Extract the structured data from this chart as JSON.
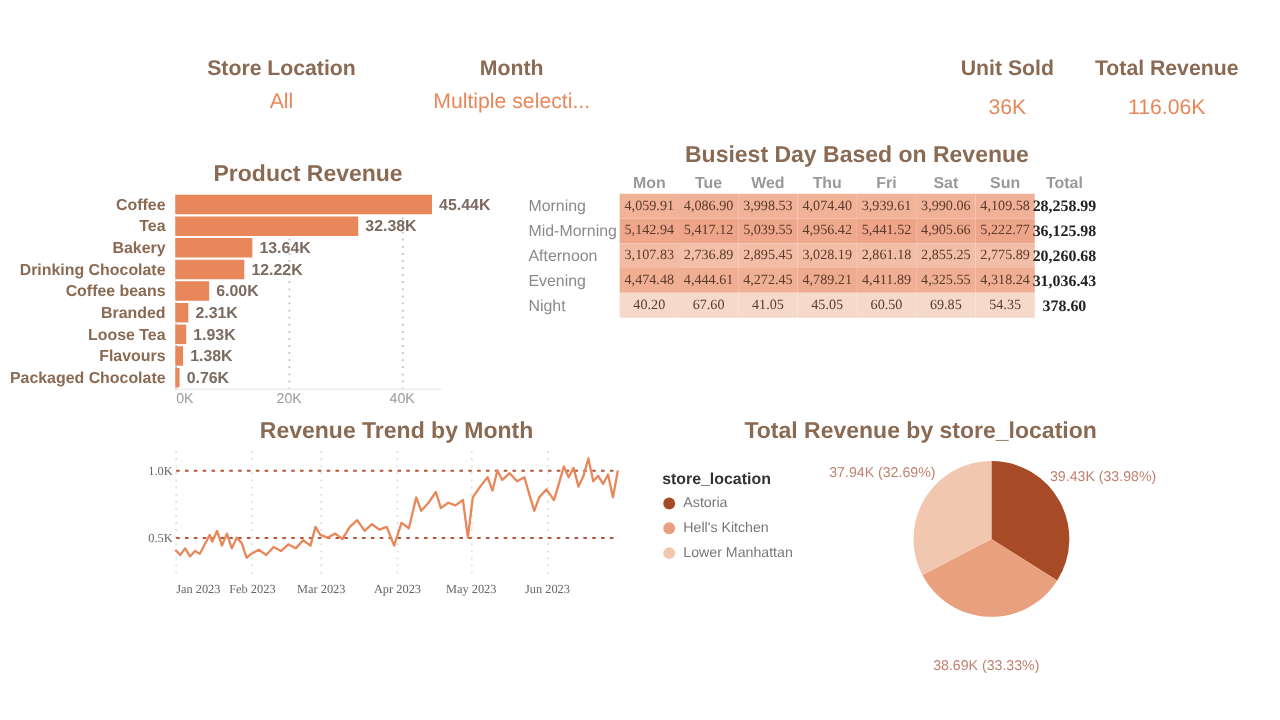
{
  "chart_data": [
    {
      "type": "other",
      "annotations": [
        "Store Location",
        "All",
        "Month",
        "Multiple selecti...",
        "Unit Sold",
        "36K",
        "Total Revenue",
        "116.06K"
      ]
    },
    {
      "type": "bar",
      "title": "Product Revenue",
      "orientation": "horizontal",
      "categories": [
        "Coffee",
        "Tea",
        "Bakery",
        "Drinking Chocolate",
        "Coffee beans",
        "Branded",
        "Loose Tea",
        "Flavours",
        "Packaged Chocolate"
      ],
      "values": [
        45.44,
        32.38,
        13.64,
        12.22,
        6.0,
        2.31,
        1.93,
        1.38,
        0.76
      ],
      "value_labels": [
        "45.44K",
        "32.38K",
        "13.64K",
        "12.22K",
        "6.00K",
        "2.31K",
        "1.93K",
        "1.38K",
        "0.76K"
      ],
      "color": "#e8875a",
      "xlim": [
        0,
        47
      ],
      "xticks": [
        {
          "value": 0,
          "label": "0K"
        },
        {
          "value": 20,
          "label": "20K"
        },
        {
          "value": 40,
          "label": "40K"
        }
      ],
      "grid": "x"
    },
    {
      "type": "heatmap",
      "title": "Busiest Day Based on Revenue",
      "categories": [
        "Mon",
        "Tue",
        "Wed",
        "Thu",
        "Fri",
        "Sat",
        "Sun"
      ],
      "y_categories": [
        "Morning",
        "Mid-Morning",
        "Afternoon",
        "Evening",
        "Night"
      ],
      "cells": [
        [
          4059.91,
          4086.9,
          3998.53,
          4074.4,
          3939.61,
          3990.06,
          4109.58
        ],
        [
          5142.94,
          5417.12,
          5039.55,
          4956.42,
          5441.52,
          4905.66,
          5222.77
        ],
        [
          3107.83,
          2736.89,
          2895.45,
          3028.19,
          2861.18,
          2855.25,
          2775.89
        ],
        [
          4474.48,
          4444.61,
          4272.45,
          4789.21,
          4411.89,
          4325.55,
          4318.24
        ],
        [
          40.2,
          67.6,
          41.05,
          45.05,
          60.5,
          69.85,
          54.35
        ]
      ],
      "cell_labels": [
        [
          "4,059.91",
          "4,086.90",
          "3,998.53",
          "4,074.40",
          "3,939.61",
          "3,990.06",
          "4,109.58"
        ],
        [
          "5,142.94",
          "5,417.12",
          "5,039.55",
          "4,956.42",
          "5,441.52",
          "4,905.66",
          "5,222.77"
        ],
        [
          "3,107.83",
          "2,736.89",
          "2,895.45",
          "3,028.19",
          "2,861.18",
          "2,855.25",
          "2,775.89"
        ],
        [
          "4,474.48",
          "4,444.61",
          "4,272.45",
          "4,789.21",
          "4,411.89",
          "4,325.55",
          "4,318.24"
        ],
        [
          "40.20",
          "67.60",
          "41.05",
          "45.05",
          "60.50",
          "69.85",
          "54.35"
        ]
      ],
      "totals": [
        "28,258.99",
        "36,125.98",
        "20,260.68",
        "31,036.43",
        "378.60"
      ],
      "annotations": [
        "Total"
      ]
    },
    {
      "type": "line",
      "title": "Revenue Trend by Month",
      "series": [
        {
          "color": "#e8875a",
          "x": [
            "2023-01-01",
            "2023-01-03",
            "2023-01-05",
            "2023-01-07",
            "2023-01-09",
            "2023-01-11",
            "2023-01-13",
            "2023-01-15",
            "2023-01-16",
            "2023-01-18",
            "2023-01-20",
            "2023-01-22",
            "2023-01-24",
            "2023-01-26",
            "2023-01-28",
            "2023-01-30",
            "2023-02-01",
            "2023-02-04",
            "2023-02-07",
            "2023-02-10",
            "2023-02-13",
            "2023-02-16",
            "2023-02-19",
            "2023-02-22",
            "2023-02-25",
            "2023-02-27",
            "2023-03-01",
            "2023-03-04",
            "2023-03-07",
            "2023-03-10",
            "2023-03-13",
            "2023-03-16",
            "2023-03-19",
            "2023-03-22",
            "2023-03-25",
            "2023-03-28",
            "2023-03-31",
            "2023-04-03",
            "2023-04-06",
            "2023-04-09",
            "2023-04-11",
            "2023-04-14",
            "2023-04-17",
            "2023-04-19",
            "2023-04-22",
            "2023-04-25",
            "2023-04-28",
            "2023-04-30",
            "2023-05-02",
            "2023-05-05",
            "2023-05-08",
            "2023-05-10",
            "2023-05-12",
            "2023-05-14",
            "2023-05-17",
            "2023-05-20",
            "2023-05-23",
            "2023-05-25",
            "2023-05-27",
            "2023-05-29",
            "2023-06-01",
            "2023-06-04",
            "2023-06-06",
            "2023-06-08",
            "2023-06-10",
            "2023-06-12",
            "2023-06-14",
            "2023-06-16",
            "2023-06-18",
            "2023-06-20",
            "2023-06-22",
            "2023-06-24",
            "2023-06-26",
            "2023-06-28",
            "2023-06-30"
          ],
          "values": [
            0.41,
            0.37,
            0.42,
            0.36,
            0.4,
            0.38,
            0.45,
            0.52,
            0.47,
            0.55,
            0.44,
            0.53,
            0.42,
            0.5,
            0.46,
            0.35,
            0.38,
            0.41,
            0.37,
            0.43,
            0.4,
            0.45,
            0.42,
            0.48,
            0.44,
            0.58,
            0.52,
            0.5,
            0.53,
            0.49,
            0.58,
            0.63,
            0.55,
            0.6,
            0.56,
            0.58,
            0.44,
            0.61,
            0.57,
            0.8,
            0.7,
            0.76,
            0.84,
            0.72,
            0.76,
            0.74,
            0.78,
            0.5,
            0.8,
            0.88,
            0.95,
            0.85,
            1.0,
            0.93,
            0.98,
            0.92,
            0.95,
            0.82,
            0.7,
            0.8,
            0.86,
            0.78,
            0.9,
            1.03,
            0.95,
            1.02,
            0.88,
            0.96,
            1.09,
            0.92,
            0.96,
            0.9,
            0.97,
            0.8,
            1.0
          ]
        }
      ],
      "xlim": [
        "2023-01-01",
        "2023-06-30"
      ],
      "xticks": [
        {
          "value": "2023-01-01",
          "label": "Jan 2023"
        },
        {
          "value": "2023-02-01",
          "label": "Feb 2023"
        },
        {
          "value": "2023-03-01",
          "label": "Mar 2023"
        },
        {
          "value": "2023-04-01",
          "label": "Apr 2023"
        },
        {
          "value": "2023-05-01",
          "label": "May 2023"
        },
        {
          "value": "2023-06-01",
          "label": "Jun 2023"
        }
      ],
      "ylim": [
        0.2,
        1.15
      ],
      "yticks": [
        {
          "value": 0.5,
          "label": "0.5K"
        },
        {
          "value": 1.0,
          "label": "1.0K"
        }
      ],
      "grid": true,
      "line_style": "solid",
      "marker": "none"
    },
    {
      "type": "pie",
      "title": "Total Revenue by store_location",
      "categories": [
        "Astoria",
        "Hell's Kitchen",
        "Lower Manhattan"
      ],
      "values": [
        33.98,
        33.33,
        32.69
      ],
      "value_labels": [
        "39.43K (33.98%)",
        "38.69K (33.33%)",
        "37.94K (32.69%)"
      ],
      "colors": [
        "#a64b25",
        "#e9a07f",
        "#f2c7b0"
      ],
      "legend_title": "store_location",
      "legend": "left"
    }
  ]
}
